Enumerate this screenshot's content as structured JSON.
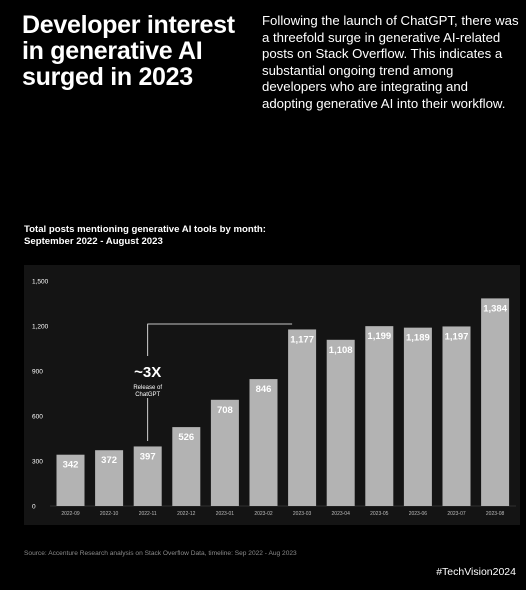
{
  "headline": "Developer interest in generative AI surged in 2023",
  "intro": "Following the launch of ChatGPT, there was a threefold surge in generative AI-related posts on Stack Overflow. This indicates a substantial ongoing trend among developers who are integrating and adopting generative AI into their workflow.",
  "source": "Source: Accenture Research analysis on Stack Overflow Data, timeline: Sep 2022 - Aug 2023",
  "hashtag": "#TechVision2024",
  "chart_data": {
    "type": "bar",
    "title": "Total posts mentioning generative AI tools by month: September 2022 - August 2023",
    "xlabel": "",
    "ylabel": "",
    "categories": [
      "2022-09",
      "2022-10",
      "2022-11",
      "2022-12",
      "2023-01",
      "2023-02",
      "2023-03",
      "2023-04",
      "2023-05",
      "2023-06",
      "2023-07",
      "2023-08"
    ],
    "values": [
      342,
      372,
      397,
      526,
      708,
      846,
      1177,
      1108,
      1199,
      1189,
      1197,
      1384
    ],
    "value_labels": [
      "342",
      "372",
      "397",
      "526",
      "708",
      "846",
      "1,177",
      "1,108",
      "1,199",
      "1,189",
      "1,197",
      "1,384"
    ],
    "ylim": [
      0,
      1500
    ],
    "yticks": [
      0,
      300,
      600,
      900,
      1200,
      1500
    ],
    "ytick_labels": [
      "0",
      "300",
      "600",
      "900",
      "1,200",
      "1,500"
    ],
    "grid": false,
    "bar_color": "#b3b3b3",
    "annotation": {
      "big_text": "~3X",
      "small_text": "Release of ChatGPT",
      "from_category": "2022-11",
      "to_category": "2023-03"
    }
  }
}
